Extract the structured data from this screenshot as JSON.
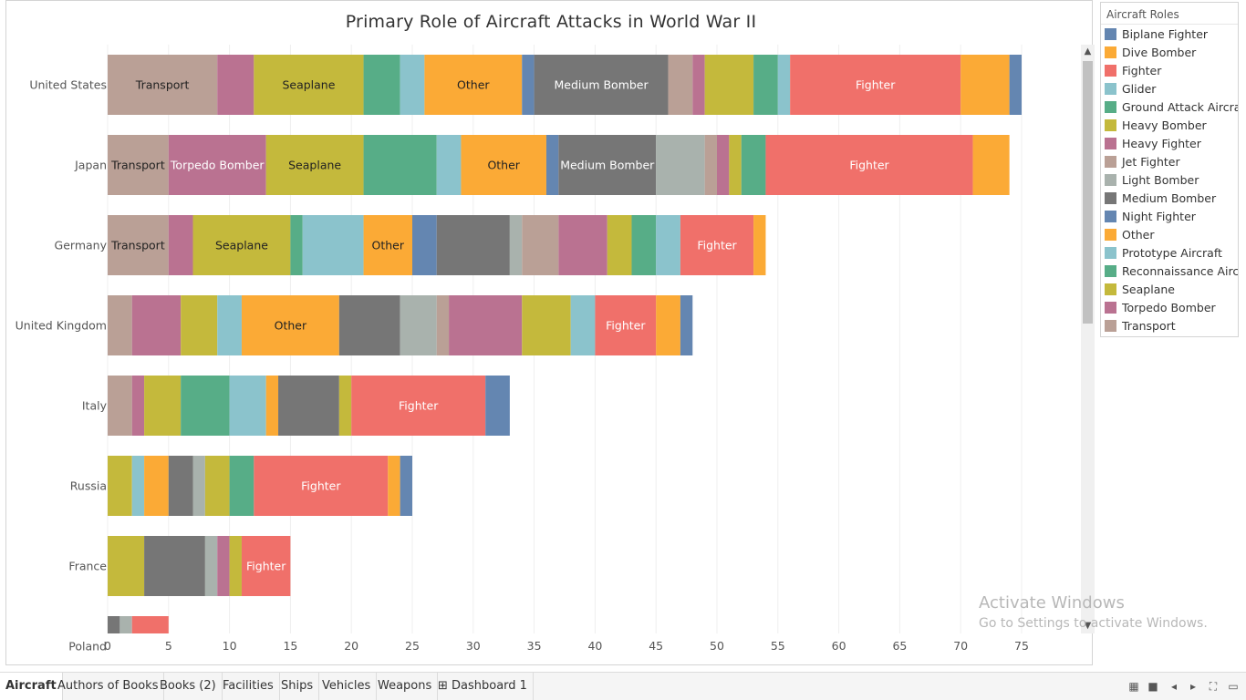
{
  "chart_data": {
    "type": "bar",
    "orientation": "horizontal",
    "stacked": true,
    "title": "Primary Role of Aircraft Attacks in World War II",
    "xlabel": "",
    "ylabel": "",
    "xlim": [
      0,
      78
    ],
    "x_ticks": [
      0,
      5,
      10,
      15,
      20,
      25,
      30,
      35,
      40,
      45,
      50,
      55,
      60,
      65,
      70,
      75
    ],
    "grid": true,
    "legend_position": "right",
    "legend_title": "Aircraft Roles",
    "categories": [
      "United States",
      "Japan",
      "Germany",
      "United Kingdom",
      "Italy",
      "Russia",
      "France",
      "Poland"
    ],
    "series_colors": {
      "Biplane Fighter": "#6486b1",
      "Dive Bomber": "#fbaa36",
      "Fighter": "#f0706a",
      "Glider": "#8bc3cc",
      "Ground Attack Aircraft": "#57ad87",
      "Heavy Bomber": "#c4b93c",
      "Heavy Fighter": "#ba7291",
      "Jet Fighter": "#baa096",
      "Light Bomber": "#a9b2ad",
      "Medium Bomber": "#767676",
      "Night Fighter": "#6486b1",
      "Other": "#fbaa36",
      "Prototype Aircraft": "#8bc3cc",
      "Reconnaissance Aircraft": "#57ad87",
      "Seaplane": "#c4b93c",
      "Torpedo Bomber": "#ba7291",
      "Transport": "#baa096"
    },
    "bars": [
      {
        "category": "United States",
        "segments": [
          {
            "role": "Transport",
            "value": 9,
            "label": "Transport"
          },
          {
            "role": "Torpedo Bomber",
            "value": 3
          },
          {
            "role": "Seaplane",
            "value": 9,
            "label": "Seaplane"
          },
          {
            "role": "Reconnaissance Aircraft",
            "value": 3
          },
          {
            "role": "Prototype Aircraft",
            "value": 2
          },
          {
            "role": "Other",
            "value": 8,
            "label": "Other"
          },
          {
            "role": "Night Fighter",
            "value": 1
          },
          {
            "role": "Medium Bomber",
            "value": 11,
            "label": "Medium Bomber"
          },
          {
            "role": "Jet Fighter",
            "value": 2
          },
          {
            "role": "Heavy Fighter",
            "value": 1
          },
          {
            "role": "Heavy Bomber",
            "value": 4
          },
          {
            "role": "Ground Attack Aircraft",
            "value": 2
          },
          {
            "role": "Glider",
            "value": 1
          },
          {
            "role": "Fighter",
            "value": 14,
            "label": "Fighter"
          },
          {
            "role": "Dive Bomber",
            "value": 4
          },
          {
            "role": "Biplane Fighter",
            "value": 1
          }
        ]
      },
      {
        "category": "Japan",
        "segments": [
          {
            "role": "Transport",
            "value": 5,
            "label": "Transport"
          },
          {
            "role": "Torpedo Bomber",
            "value": 8,
            "label": "Torpedo Bomber"
          },
          {
            "role": "Seaplane",
            "value": 8,
            "label": "Seaplane"
          },
          {
            "role": "Reconnaissance Aircraft",
            "value": 6
          },
          {
            "role": "Prototype Aircraft",
            "value": 2
          },
          {
            "role": "Other",
            "value": 7,
            "label": "Other"
          },
          {
            "role": "Night Fighter",
            "value": 1
          },
          {
            "role": "Medium Bomber",
            "value": 8,
            "label": "Medium Bomber"
          },
          {
            "role": "Light Bomber",
            "value": 4
          },
          {
            "role": "Jet Fighter",
            "value": 1
          },
          {
            "role": "Heavy Fighter",
            "value": 1
          },
          {
            "role": "Heavy Bomber",
            "value": 1
          },
          {
            "role": "Ground Attack Aircraft",
            "value": 2
          },
          {
            "role": "Fighter",
            "value": 17,
            "label": "Fighter"
          },
          {
            "role": "Dive Bomber",
            "value": 3
          }
        ]
      },
      {
        "category": "Germany",
        "segments": [
          {
            "role": "Transport",
            "value": 5,
            "label": "Transport"
          },
          {
            "role": "Torpedo Bomber",
            "value": 2
          },
          {
            "role": "Seaplane",
            "value": 8,
            "label": "Seaplane"
          },
          {
            "role": "Reconnaissance Aircraft",
            "value": 1
          },
          {
            "role": "Prototype Aircraft",
            "value": 5
          },
          {
            "role": "Other",
            "value": 4,
            "label": "Other"
          },
          {
            "role": "Night Fighter",
            "value": 2
          },
          {
            "role": "Medium Bomber",
            "value": 6
          },
          {
            "role": "Light Bomber",
            "value": 1
          },
          {
            "role": "Jet Fighter",
            "value": 3
          },
          {
            "role": "Heavy Fighter",
            "value": 4
          },
          {
            "role": "Heavy Bomber",
            "value": 2
          },
          {
            "role": "Ground Attack Aircraft",
            "value": 2
          },
          {
            "role": "Glider",
            "value": 2
          },
          {
            "role": "Fighter",
            "value": 6,
            "label": "Fighter"
          },
          {
            "role": "Dive Bomber",
            "value": 1
          }
        ]
      },
      {
        "category": "United Kingdom",
        "segments": [
          {
            "role": "Transport",
            "value": 2
          },
          {
            "role": "Torpedo Bomber",
            "value": 4
          },
          {
            "role": "Seaplane",
            "value": 3
          },
          {
            "role": "Prototype Aircraft",
            "value": 2
          },
          {
            "role": "Other",
            "value": 8,
            "label": "Other"
          },
          {
            "role": "Medium Bomber",
            "value": 5
          },
          {
            "role": "Light Bomber",
            "value": 3
          },
          {
            "role": "Jet Fighter",
            "value": 1
          },
          {
            "role": "Heavy Fighter",
            "value": 6
          },
          {
            "role": "Heavy Bomber",
            "value": 4
          },
          {
            "role": "Glider",
            "value": 2
          },
          {
            "role": "Fighter",
            "value": 5,
            "label": "Fighter"
          },
          {
            "role": "Dive Bomber",
            "value": 2
          },
          {
            "role": "Biplane Fighter",
            "value": 1
          }
        ]
      },
      {
        "category": "Italy",
        "segments": [
          {
            "role": "Transport",
            "value": 2
          },
          {
            "role": "Torpedo Bomber",
            "value": 1
          },
          {
            "role": "Seaplane",
            "value": 3
          },
          {
            "role": "Reconnaissance Aircraft",
            "value": 4
          },
          {
            "role": "Prototype Aircraft",
            "value": 3
          },
          {
            "role": "Other",
            "value": 1
          },
          {
            "role": "Medium Bomber",
            "value": 5
          },
          {
            "role": "Heavy Bomber",
            "value": 1
          },
          {
            "role": "Fighter",
            "value": 11,
            "label": "Fighter"
          },
          {
            "role": "Biplane Fighter",
            "value": 2
          }
        ]
      },
      {
        "category": "Russia",
        "segments": [
          {
            "role": "Seaplane",
            "value": 2
          },
          {
            "role": "Prototype Aircraft",
            "value": 1
          },
          {
            "role": "Other",
            "value": 2
          },
          {
            "role": "Medium Bomber",
            "value": 2
          },
          {
            "role": "Light Bomber",
            "value": 1
          },
          {
            "role": "Heavy Bomber",
            "value": 2
          },
          {
            "role": "Ground Attack Aircraft",
            "value": 2
          },
          {
            "role": "Fighter",
            "value": 11,
            "label": "Fighter"
          },
          {
            "role": "Dive Bomber",
            "value": 1
          },
          {
            "role": "Biplane Fighter",
            "value": 1
          }
        ]
      },
      {
        "category": "France",
        "segments": [
          {
            "role": "Seaplane",
            "value": 3
          },
          {
            "role": "Medium Bomber",
            "value": 5
          },
          {
            "role": "Light Bomber",
            "value": 1
          },
          {
            "role": "Heavy Fighter",
            "value": 1
          },
          {
            "role": "Heavy Bomber",
            "value": 1
          },
          {
            "role": "Fighter",
            "value": 4,
            "label": "Fighter"
          }
        ]
      },
      {
        "category": "Poland",
        "segments": [
          {
            "role": "Medium Bomber",
            "value": 1
          },
          {
            "role": "Light Bomber",
            "value": 1
          },
          {
            "role": "Fighter",
            "value": 3
          }
        ]
      }
    ]
  },
  "legend": {
    "title": "Aircraft Roles",
    "items": [
      {
        "label": "Biplane Fighter",
        "color": "#6486b1"
      },
      {
        "label": "Dive Bomber",
        "color": "#fbaa36"
      },
      {
        "label": "Fighter",
        "color": "#f0706a"
      },
      {
        "label": "Glider",
        "color": "#8bc3cc"
      },
      {
        "label": "Ground Attack Aircra..",
        "color": "#57ad87"
      },
      {
        "label": "Heavy Bomber",
        "color": "#c4b93c"
      },
      {
        "label": "Heavy Fighter",
        "color": "#ba7291"
      },
      {
        "label": "Jet Fighter",
        "color": "#baa096"
      },
      {
        "label": "Light Bomber",
        "color": "#a9b2ad"
      },
      {
        "label": "Medium Bomber",
        "color": "#767676"
      },
      {
        "label": "Night Fighter",
        "color": "#6486b1"
      },
      {
        "label": "Other",
        "color": "#fbaa36"
      },
      {
        "label": "Prototype Aircraft",
        "color": "#8bc3cc"
      },
      {
        "label": "Reconnaissance Airc..",
        "color": "#57ad87"
      },
      {
        "label": "Seaplane",
        "color": "#c4b93c"
      },
      {
        "label": "Torpedo Bomber",
        "color": "#ba7291"
      },
      {
        "label": "Transport",
        "color": "#baa096"
      }
    ]
  },
  "watermark": {
    "line1": "Activate Windows",
    "line2": "Go to Settings to activate Windows."
  },
  "tabs": [
    {
      "label": "Aircraft",
      "active": true
    },
    {
      "label": "Authors of Books",
      "active": false
    },
    {
      "label": "Books (2)",
      "active": false
    },
    {
      "label": "Facilities",
      "active": false
    },
    {
      "label": "Ships",
      "active": false
    },
    {
      "label": "Vehicles",
      "active": false
    },
    {
      "label": "Weapons",
      "active": false
    },
    {
      "label": "⊞ Dashboard 1",
      "active": false
    }
  ],
  "tab_bar_icons": [
    "grid-view-icon",
    "sheet-view-icon",
    "prev-sheet-icon",
    "next-sheet-icon",
    "fit-icon",
    "presentation-icon"
  ]
}
